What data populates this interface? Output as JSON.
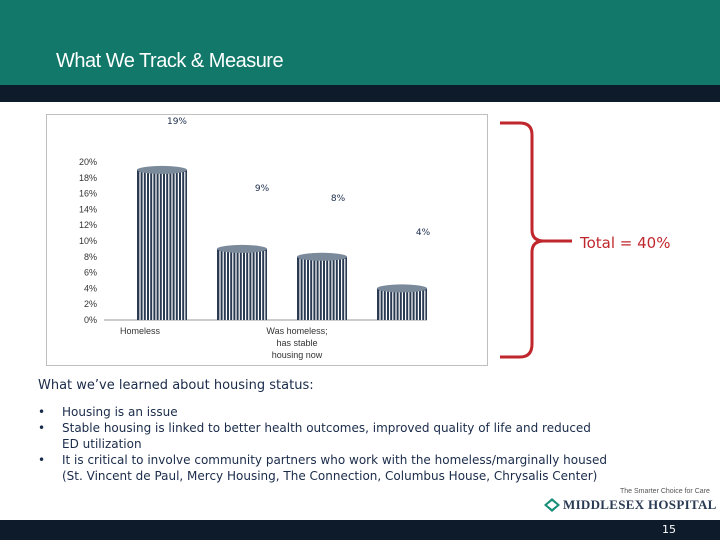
{
  "header": {
    "title": "What We Track & Measure"
  },
  "chart_data": {
    "type": "bar",
    "categories": [
      "Homeless",
      "",
      "Was homeless; has stable housing now",
      ""
    ],
    "values": [
      19,
      9,
      8,
      4
    ],
    "value_labels": [
      "19%",
      "9%",
      "8%",
      "4%"
    ],
    "yticks": [
      "0%",
      "2%",
      "4%",
      "6%",
      "8%",
      "10%",
      "12%",
      "14%",
      "16%",
      "18%",
      "20%"
    ],
    "ylim": [
      0,
      20
    ],
    "bar_color": "#2a3a52",
    "bar_top_color": "#7a8a9a",
    "title": "",
    "xlabel": "",
    "ylabel": ""
  },
  "total_label": "Total = 40%",
  "brace_color": "#c0272d",
  "learned_heading": "What we’ve learned about housing status:",
  "bullets": [
    "Housing is an issue",
    "Stable housing is linked to better health outcomes, improved quality of life and reduced ED utilization",
    "It is critical to involve community partners who work with the homeless/marginally housed (St. Vincent de Paul, Mercy Housing, The Connection, Columbus House, Chrysalis Center)"
  ],
  "bullet_char": "•",
  "footer": {
    "tagline": "The Smarter Choice for Care",
    "logo_text": "MIDDLESEX HOSPITAL",
    "page_number": "15"
  }
}
